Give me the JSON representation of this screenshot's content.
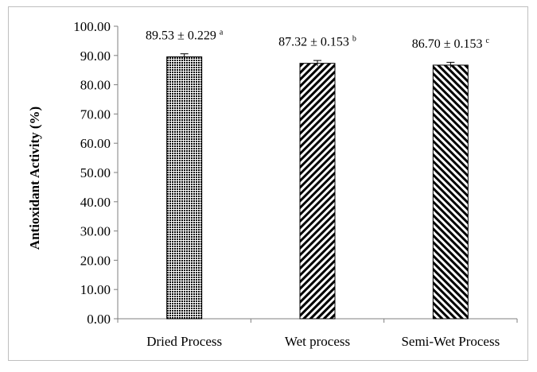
{
  "chart_data": {
    "type": "bar",
    "title": "",
    "xlabel": "",
    "ylabel": "Antioxidant Activity (%)",
    "ylim": [
      0,
      100
    ],
    "ytick_step": 10,
    "ytick_labels": [
      "0.00",
      "10.00",
      "20.00",
      "30.00",
      "40.00",
      "50.00",
      "60.00",
      "70.00",
      "80.00",
      "90.00",
      "100.00"
    ],
    "grid": false,
    "categories": [
      "Dried Process",
      "Wet process",
      "Semi-Wet Process"
    ],
    "values": [
      89.53,
      87.32,
      86.7
    ],
    "errors": [
      0.229,
      0.153,
      0.153
    ],
    "data_labels": [
      {
        "text": "89.53 ± 0.229",
        "sup": "a"
      },
      {
        "text": "87.32 ± 0.153",
        "sup": "b"
      },
      {
        "text": "86.70 ± 0.153",
        "sup": "c"
      }
    ],
    "patterns": [
      "dots",
      "diagonal-back",
      "diagonal-forward"
    ],
    "bar_color": "#000000"
  }
}
